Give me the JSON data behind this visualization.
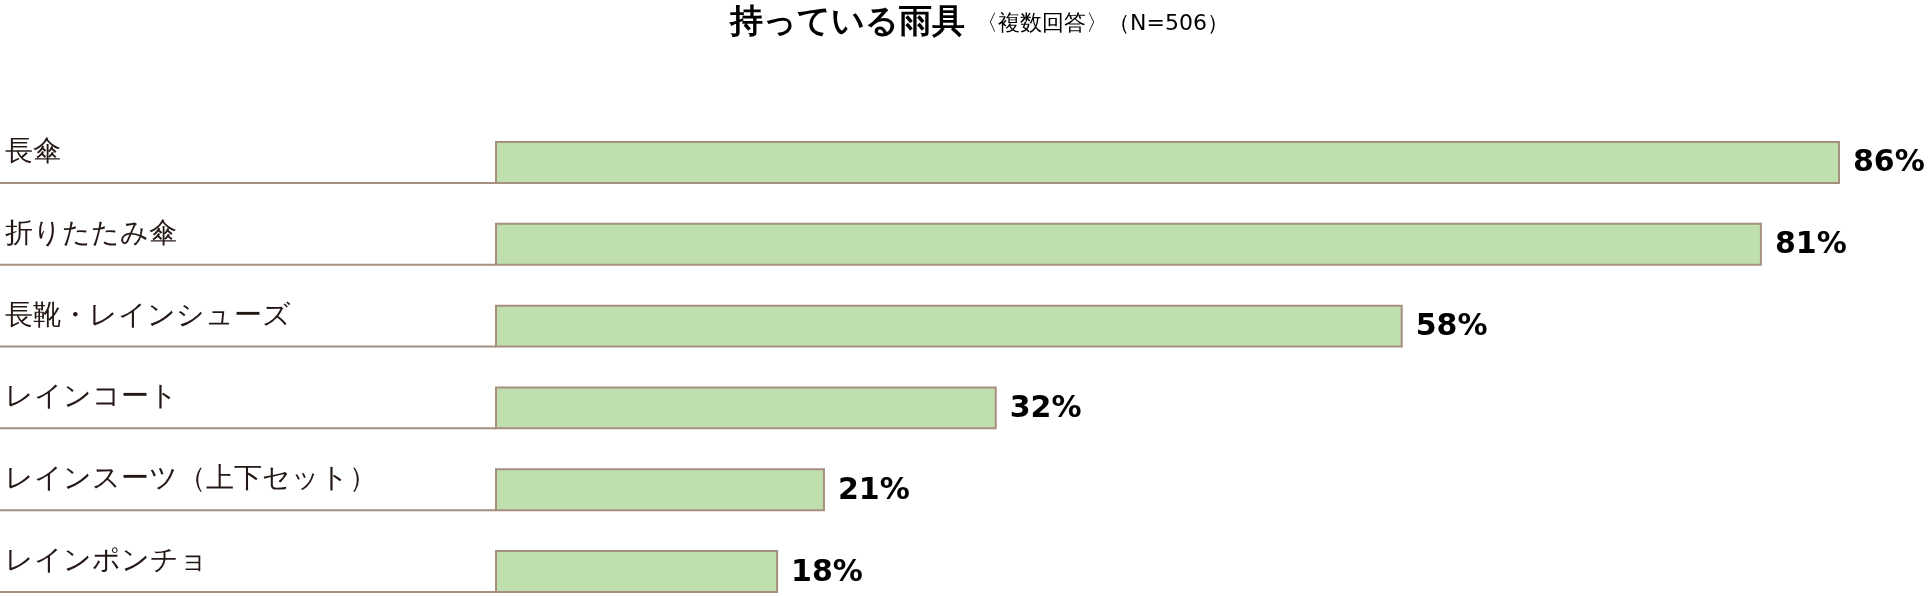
{
  "chart_data": {
    "type": "bar",
    "orientation": "horizontal",
    "title": "持っている雨具",
    "subtitle": "〈複数回答〉（N=506）",
    "categories": [
      "長傘",
      "折りたたみ傘",
      "長靴・レインシューズ",
      "レインコート",
      "レインスーツ（上下セット）",
      "レインポンチョ"
    ],
    "values": [
      86,
      81,
      58,
      32,
      21,
      18
    ],
    "value_labels": [
      "86%",
      "81%",
      "58%",
      "32%",
      "21%",
      "18%"
    ],
    "color": "#bfdfae",
    "tick_labels": "y"
  }
}
